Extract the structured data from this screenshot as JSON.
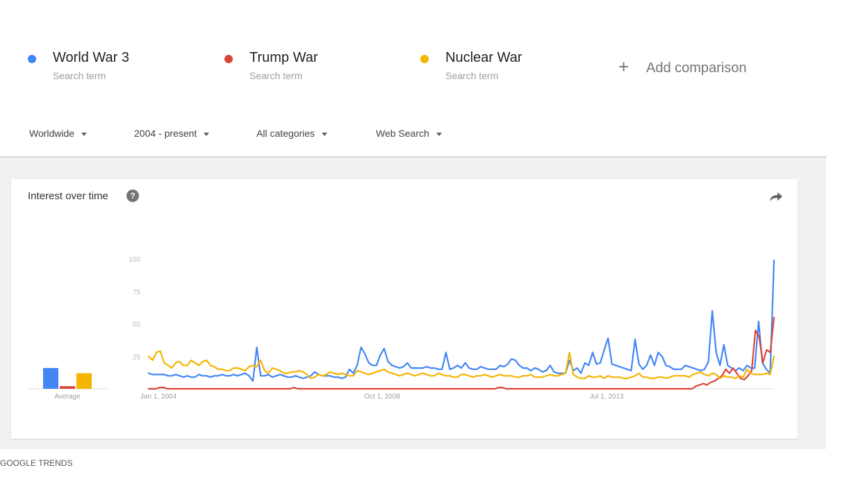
{
  "terms": [
    {
      "name": "World War 3",
      "sub": "Search term",
      "color": "#4285f4"
    },
    {
      "name": "Trump War",
      "sub": "Search term",
      "color": "#db4437"
    },
    {
      "name": "Nuclear War",
      "sub": "Search term",
      "color": "#f4b400"
    }
  ],
  "add_comparison": {
    "icon": "plus-icon",
    "label": "Add comparison"
  },
  "filters": {
    "region": "Worldwide",
    "time": "2004 - present",
    "category": "All categories",
    "search_type": "Web Search"
  },
  "card": {
    "title": "Interest over time",
    "help_icon": "question-icon",
    "share_icon": "share-icon"
  },
  "footer": "GOOGLE TRENDS",
  "chart_data": {
    "type": "line",
    "yticks": [
      "100",
      "75",
      "50",
      "25"
    ],
    "ylim": [
      0,
      100
    ],
    "x_tick_labels": [
      "Jan 1, 2004",
      "Oct 1, 2008",
      "Jul 1, 2013"
    ],
    "average_label": "Average",
    "averages": [
      {
        "name": "World War 3",
        "value": 16,
        "color": "#4285f4"
      },
      {
        "name": "Trump War",
        "value": 2,
        "color": "#db4437"
      },
      {
        "name": "Nuclear War",
        "value": 12,
        "color": "#f4b400"
      }
    ],
    "series": [
      {
        "name": "World War 3",
        "color": "#4285f4",
        "values": [
          12,
          11,
          11,
          11,
          11,
          10,
          10,
          11,
          10,
          9,
          10,
          9,
          9,
          11,
          10,
          10,
          9,
          10,
          10,
          11,
          10,
          10,
          11,
          10,
          11,
          12,
          10,
          6,
          32,
          10,
          10,
          11,
          9,
          10,
          11,
          10,
          9,
          9,
          10,
          9,
          8,
          9,
          10,
          13,
          11,
          10,
          10,
          10,
          9,
          9,
          8,
          9,
          15,
          12,
          18,
          32,
          27,
          20,
          18,
          18,
          26,
          31,
          21,
          18,
          17,
          16,
          17,
          20,
          16,
          16,
          16,
          16,
          17,
          16,
          16,
          15,
          15,
          28,
          15,
          16,
          18,
          16,
          20,
          16,
          15,
          15,
          17,
          16,
          15,
          15,
          15,
          18,
          17,
          19,
          23,
          22,
          18,
          16,
          16,
          14,
          16,
          15,
          13,
          14,
          18,
          13,
          12,
          12,
          12,
          22,
          14,
          16,
          12,
          20,
          18,
          28,
          19,
          20,
          30,
          39,
          19,
          18,
          17,
          16,
          15,
          14,
          38,
          19,
          15,
          18,
          26,
          18,
          28,
          25,
          18,
          17,
          15,
          15,
          15,
          18,
          17,
          16,
          15,
          14,
          15,
          21,
          60,
          28,
          18,
          34,
          18,
          16,
          14,
          16,
          14,
          18,
          16,
          16,
          52,
          20,
          15,
          12,
          99
        ]
      },
      {
        "name": "Trump War",
        "color": "#db4437",
        "values": [
          0,
          0,
          0,
          1,
          1,
          0,
          0,
          0,
          0,
          0,
          0,
          0,
          0,
          0,
          0,
          0,
          0,
          0,
          0,
          0,
          0,
          0,
          0,
          0,
          0,
          0,
          0,
          0,
          0,
          0,
          0,
          0,
          0,
          0,
          0,
          0,
          0,
          0,
          0,
          1,
          0,
          0,
          0,
          0,
          0,
          0,
          0,
          0,
          0,
          0,
          0,
          0,
          0,
          0,
          0,
          0,
          0,
          0,
          0,
          0,
          0,
          0,
          0,
          0,
          0,
          0,
          0,
          0,
          0,
          0,
          0,
          0,
          0,
          0,
          0,
          0,
          0,
          0,
          0,
          0,
          0,
          0,
          0,
          0,
          0,
          0,
          0,
          0,
          0,
          0,
          0,
          0,
          0,
          0,
          1,
          1,
          0,
          0,
          0,
          0,
          0,
          0,
          0,
          0,
          0,
          0,
          0,
          0,
          0,
          0,
          0,
          0,
          0,
          0,
          0,
          0,
          0,
          0,
          0,
          0,
          0,
          0,
          0,
          0,
          0,
          0,
          0,
          0,
          0,
          0,
          0,
          0,
          0,
          0,
          0,
          0,
          0,
          0,
          0,
          0,
          0,
          0,
          0,
          0,
          0,
          0,
          0,
          2,
          3,
          4,
          3,
          5,
          6,
          8,
          10,
          15,
          12,
          16,
          12,
          8,
          7,
          10,
          14,
          45,
          40,
          20,
          30,
          28,
          55
        ]
      },
      {
        "name": "Nuclear War",
        "color": "#f4b400",
        "values": [
          25,
          22,
          28,
          29,
          20,
          18,
          16,
          20,
          21,
          18,
          18,
          22,
          20,
          18,
          21,
          22,
          18,
          17,
          15,
          15,
          14,
          14,
          16,
          16,
          15,
          14,
          17,
          18,
          17,
          22,
          14,
          12,
          16,
          15,
          14,
          12,
          12,
          13,
          13,
          14,
          13,
          11,
          8,
          9,
          11,
          10,
          11,
          13,
          12,
          11,
          12,
          11,
          10,
          10,
          14,
          13,
          12,
          11,
          12,
          13,
          14,
          15,
          13,
          12,
          11,
          10,
          11,
          12,
          11,
          10,
          11,
          12,
          11,
          10,
          10,
          12,
          11,
          10,
          10,
          9,
          9,
          11,
          11,
          10,
          9,
          10,
          10,
          11,
          10,
          9,
          10,
          11,
          10,
          10,
          10,
          9,
          9,
          10,
          10,
          11,
          9,
          9,
          9,
          10,
          11,
          10,
          10,
          11,
          12,
          28,
          11,
          9,
          8,
          8,
          10,
          9,
          9,
          10,
          8,
          10,
          9,
          9,
          9,
          8,
          8,
          9,
          10,
          12,
          9,
          9,
          8,
          8,
          9,
          9,
          8,
          9,
          10,
          10,
          10,
          10,
          9,
          11,
          12,
          13,
          11,
          10,
          12,
          11,
          8,
          10,
          9,
          9,
          8,
          10,
          9,
          15,
          12,
          11,
          11,
          11,
          12,
          11,
          25
        ]
      }
    ]
  }
}
